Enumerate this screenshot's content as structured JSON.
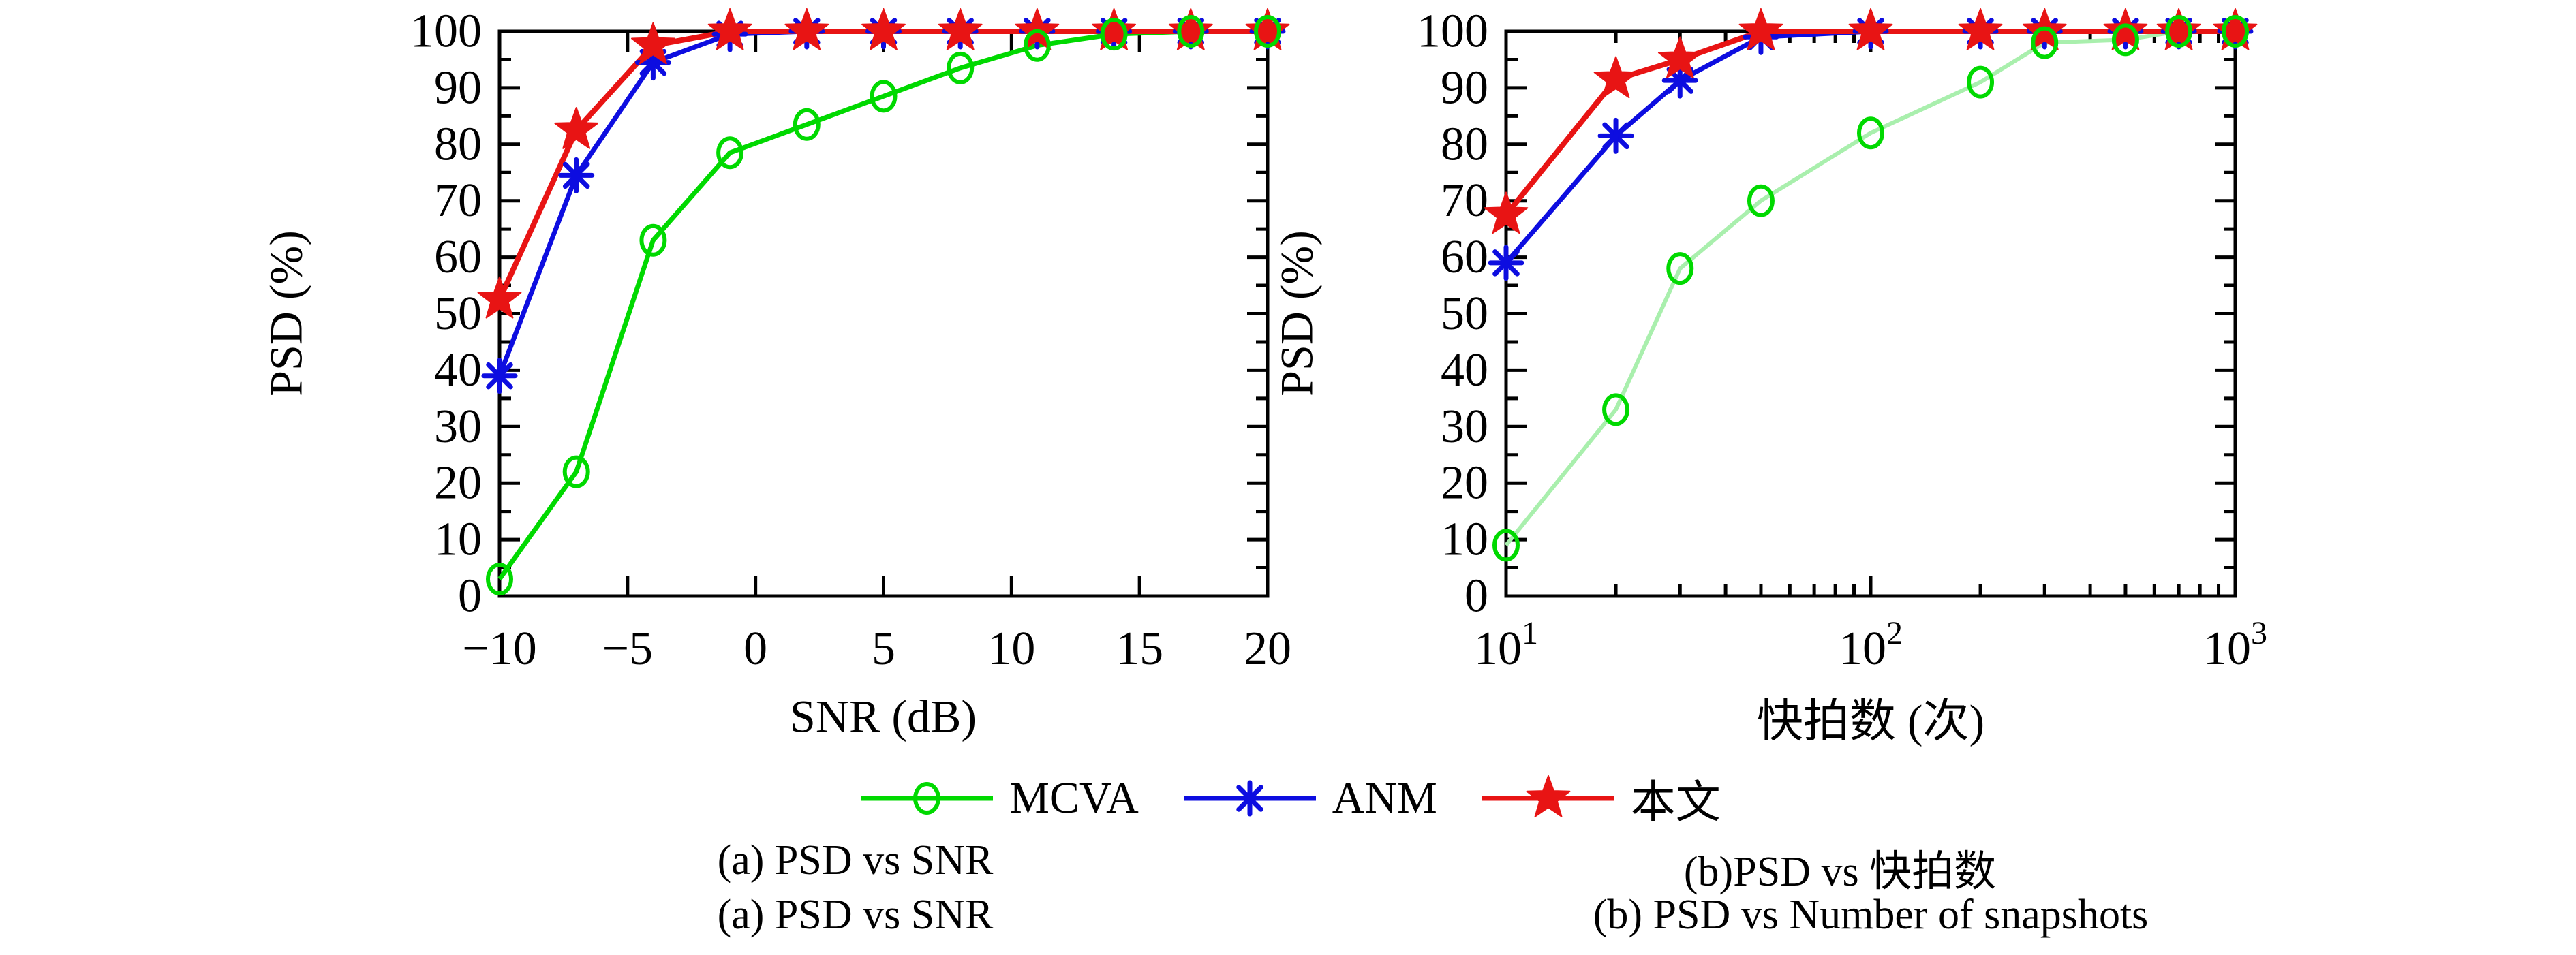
{
  "page": {
    "background": "#ffffff"
  },
  "legend": {
    "items": [
      {
        "style": "mcva",
        "label": "MCVA"
      },
      {
        "style": "anm",
        "label": "ANM"
      },
      {
        "style": "proposed",
        "label": "本文"
      }
    ]
  },
  "series_styles": {
    "mcva": {
      "marker": "circle",
      "color": "#00d900"
    },
    "anm": {
      "marker": "asterisk",
      "color": "#0d0de0"
    },
    "proposed": {
      "marker": "star",
      "color": "#e81414"
    }
  },
  "captions": {
    "a_top": "(a) PSD vs SNR",
    "b_top": "(b)PSD vs 快拍数",
    "a_bottom": "(a) PSD vs SNR",
    "b_bottom": "(b) PSD vs Number of snapshots"
  },
  "chart_data": [
    {
      "id": "snr",
      "type": "line",
      "title": "(a) PSD vs SNR",
      "xlabel": "SNR (dB)",
      "ylabel": "PSD (%)",
      "xscale": "linear",
      "xlim": [
        -10,
        20
      ],
      "ylim": [
        0,
        100
      ],
      "xticks": [
        -10,
        -5,
        0,
        5,
        10,
        15,
        20
      ],
      "ytick_major": 10,
      "ytick_minor": 5,
      "grid": false,
      "x": [
        -10,
        -7,
        -4,
        -1,
        2,
        5,
        8,
        11,
        14,
        17,
        20
      ],
      "series": [
        {
          "name": "MCVA",
          "style": "mcva",
          "line_width": 7,
          "values": [
            3,
            22,
            63,
            78.5,
            83.5,
            88.5,
            93.5,
            97.5,
            99.5,
            100,
            100
          ]
        },
        {
          "name": "ANM",
          "style": "anm",
          "line_width": 7,
          "values": [
            39,
            74.5,
            94.5,
            99.5,
            100,
            100,
            100,
            100,
            100,
            100,
            100
          ]
        },
        {
          "name": "本文",
          "style": "proposed",
          "line_width": 8,
          "values": [
            52.5,
            82.5,
            97.5,
            100,
            100,
            100,
            100,
            100,
            100,
            100,
            100
          ]
        }
      ]
    },
    {
      "id": "snapshots",
      "type": "line",
      "title": "(b) PSD vs Number of snapshots",
      "xlabel": "快拍数 (次)",
      "ylabel": "PSD (%)",
      "xscale": "log",
      "xlim": [
        10,
        1000
      ],
      "ylim": [
        0,
        100
      ],
      "xticks": [
        10,
        100,
        1000
      ],
      "ytick_major": 10,
      "ytick_minor": 5,
      "grid": false,
      "x": [
        10,
        20,
        30,
        50,
        100,
        200,
        300,
        500,
        700,
        1000
      ],
      "series": [
        {
          "name": "MCVA",
          "style": "mcva",
          "line_color": "#a9efad",
          "line_width": 6,
          "values": [
            9,
            33,
            58,
            70,
            82,
            91,
            98,
            98.5,
            100,
            100
          ]
        },
        {
          "name": "ANM",
          "style": "anm",
          "line_width": 7,
          "values": [
            59,
            81.5,
            91.3,
            99,
            100,
            100,
            100,
            100,
            100,
            100
          ]
        },
        {
          "name": "本文",
          "style": "proposed",
          "line_width": 8,
          "values": [
            67.5,
            91.5,
            95,
            100,
            100,
            100,
            100,
            100,
            100,
            100
          ]
        }
      ]
    }
  ]
}
